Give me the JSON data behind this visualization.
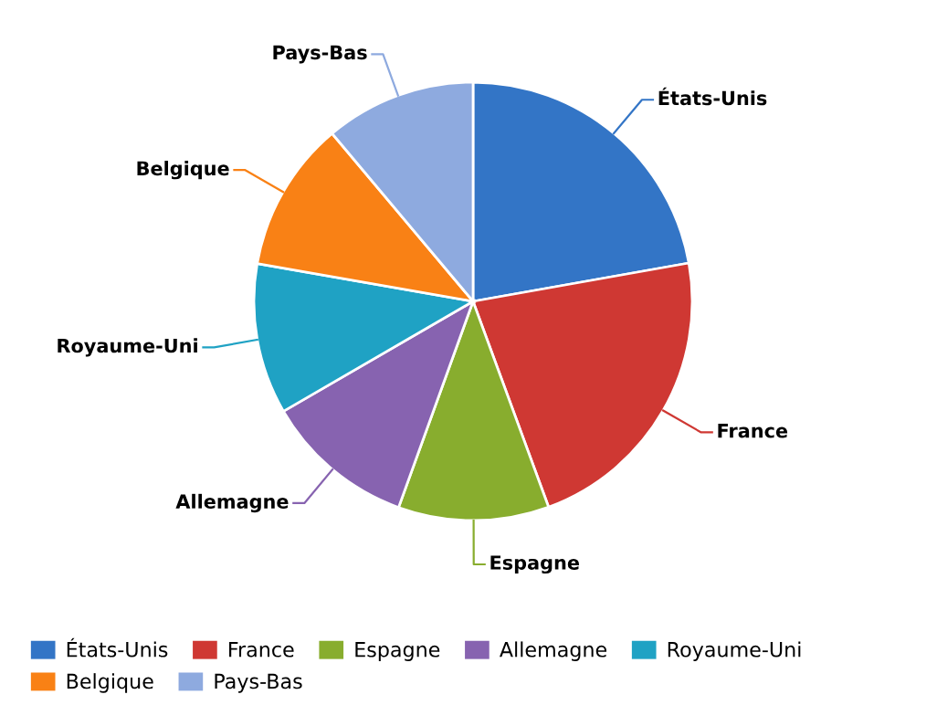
{
  "chart_data": {
    "type": "pie",
    "categories": [
      "États-Unis",
      "France",
      "Espagne",
      "Allemagne",
      "Royaume-Uni",
      "Belgique",
      "Pays-Bas"
    ],
    "values": [
      22.2,
      22.2,
      11.12,
      11.12,
      11.12,
      11.12,
      11.12
    ],
    "colors": [
      "#3375c6",
      "#cf3833",
      "#88ad2e",
      "#8763b0",
      "#1fa2c4",
      "#f98115",
      "#8eaadf"
    ],
    "legend": "bottom"
  }
}
